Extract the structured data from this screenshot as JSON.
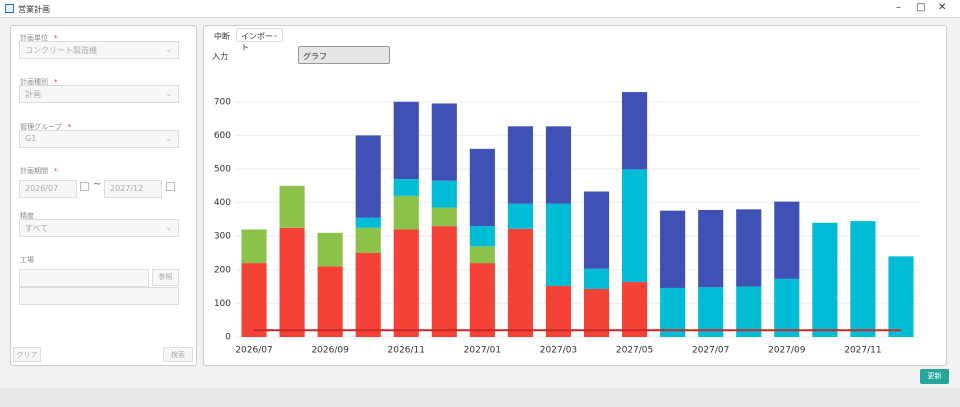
{
  "window": {
    "title": "営業計画"
  },
  "filters": {
    "required_mark": "*",
    "plan_unit": {
      "label": "計画単位",
      "value": "コンクリート製造機"
    },
    "plan_type": {
      "label": "計画種別",
      "value": "計画"
    },
    "group": {
      "label": "管理グループ",
      "value": "G1"
    },
    "period": {
      "label": "計画期間",
      "from": "2026/07",
      "separator": "~",
      "to": "2027/12"
    },
    "precision": {
      "label": "精度",
      "value": "すべて"
    },
    "factory": {
      "label": "工場",
      "button": "参照"
    },
    "clear_button": "クリア",
    "search_button": "検索"
  },
  "toolbar": {
    "stop": "中断",
    "import": "インポート"
  },
  "tabs": [
    "入力",
    "グラフ"
  ],
  "update_button": "更新",
  "chart_data": {
    "type": "bar",
    "stacked": true,
    "categories": [
      "2026/07",
      null,
      "2026/09",
      null,
      "2026/11",
      null,
      "2027/01",
      null,
      "2027/03",
      null,
      "2027/05",
      null,
      "2027/07",
      null,
      "2027/09",
      null,
      "2027/11",
      null
    ],
    "series": [
      {
        "color": "#f44336",
        "values": [
          220,
          325,
          210,
          250,
          320,
          330,
          220,
          322,
          152,
          143,
          164,
          0,
          0,
          0,
          0,
          0,
          0,
          0
        ]
      },
      {
        "color": "#8bc34a",
        "values": [
          100,
          125,
          100,
          75,
          100,
          55,
          50,
          0,
          0,
          0,
          0,
          0,
          0,
          0,
          0,
          0,
          0,
          0
        ]
      },
      {
        "color": "#00bcd4",
        "values": [
          0,
          0,
          0,
          30,
          50,
          80,
          60,
          75,
          245,
          60,
          335,
          146,
          148,
          150,
          173,
          340,
          345,
          240
        ]
      },
      {
        "color": "#3f51b5",
        "values": [
          0,
          0,
          0,
          245,
          230,
          230,
          230,
          230,
          230,
          230,
          230,
          230,
          230,
          230,
          230,
          0,
          0,
          0
        ]
      },
      {
        "type": "line",
        "color": "#c62828",
        "values": [
          20,
          20,
          20,
          20,
          20,
          20,
          20,
          20,
          20,
          20,
          20,
          20,
          20,
          20,
          20,
          20,
          20,
          20
        ]
      }
    ],
    "ylim": [
      0,
      750
    ],
    "yticks": [
      0,
      100,
      200,
      300,
      400,
      500,
      600,
      700
    ],
    "grid": true
  }
}
